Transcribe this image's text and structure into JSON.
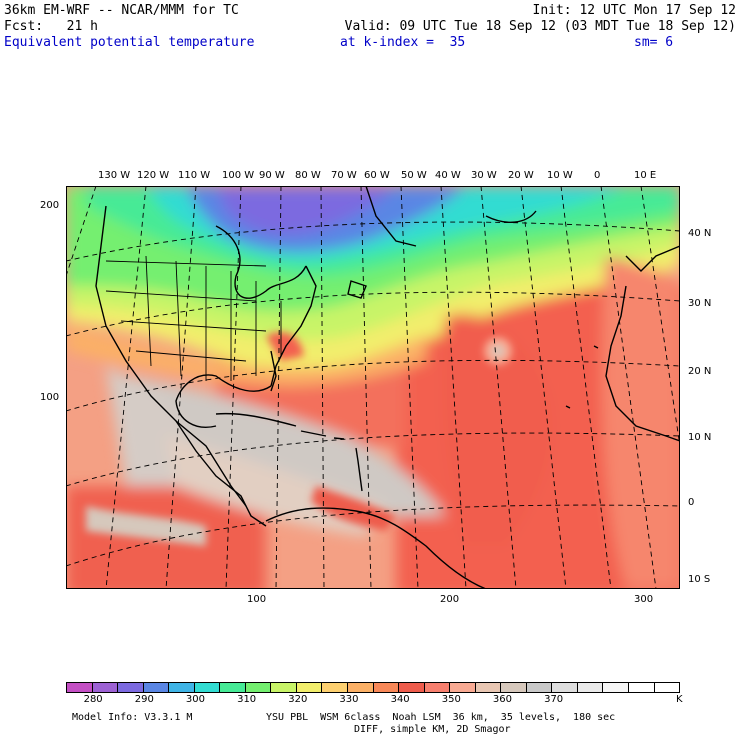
{
  "header": {
    "line1_left": "36km EM-WRF -- NCAR/MMM for TC",
    "line1_right": "Init: 12 UTC Mon 17 Sep 12",
    "line2_left": "Fcst:   21 h",
    "line2_right": "Valid: 09 UTC Tue 18 Sep 12 (03 MDT Tue 18 Sep 12)",
    "field": "Equivalent potential temperature",
    "level": "at k-index =  35",
    "smooth": "sm= 6"
  },
  "map": {
    "top_lon_labels": [
      "130 W",
      "120 W",
      "110 W",
      "100 W",
      "90 W",
      "80 W",
      "70 W",
      "60 W",
      "50 W",
      "40 W",
      "30 W",
      "20 W",
      "10 W",
      "0",
      "10 E"
    ],
    "right_lat_labels": [
      "40 N",
      "30 N",
      "20 N",
      "10 N",
      "0",
      "10 S"
    ],
    "left_grid_labels": [
      "200",
      "100"
    ],
    "bottom_grid_labels": [
      "100",
      "200",
      "300"
    ]
  },
  "colorbar": {
    "colors": [
      "#c44fc4",
      "#9d62d4",
      "#7c6ae0",
      "#5a86e4",
      "#3fb4e6",
      "#32dcd2",
      "#46ea96",
      "#74ef70",
      "#c8f468",
      "#f2ee6c",
      "#fdd070",
      "#fbb066",
      "#f88858",
      "#ee5c4c",
      "#f77f6e",
      "#f8aa93",
      "#e9c7b3",
      "#d6c8bc",
      "#c9c9c9",
      "#dedede",
      "#eaeaea",
      "#f6f6f6",
      "#ffffff",
      "#ffffff"
    ],
    "tick_labels": [
      "280",
      "290",
      "300",
      "310",
      "320",
      "330",
      "340",
      "350",
      "360",
      "370"
    ],
    "unit": "K"
  },
  "footer": {
    "model_info": "Model Info: V3.3.1 M",
    "physics": "YSU PBL  WSM 6class  Noah LSM  36 km,  35 levels,  180 sec",
    "diff": "DIFF, simple KM, 2D Smagor"
  }
}
